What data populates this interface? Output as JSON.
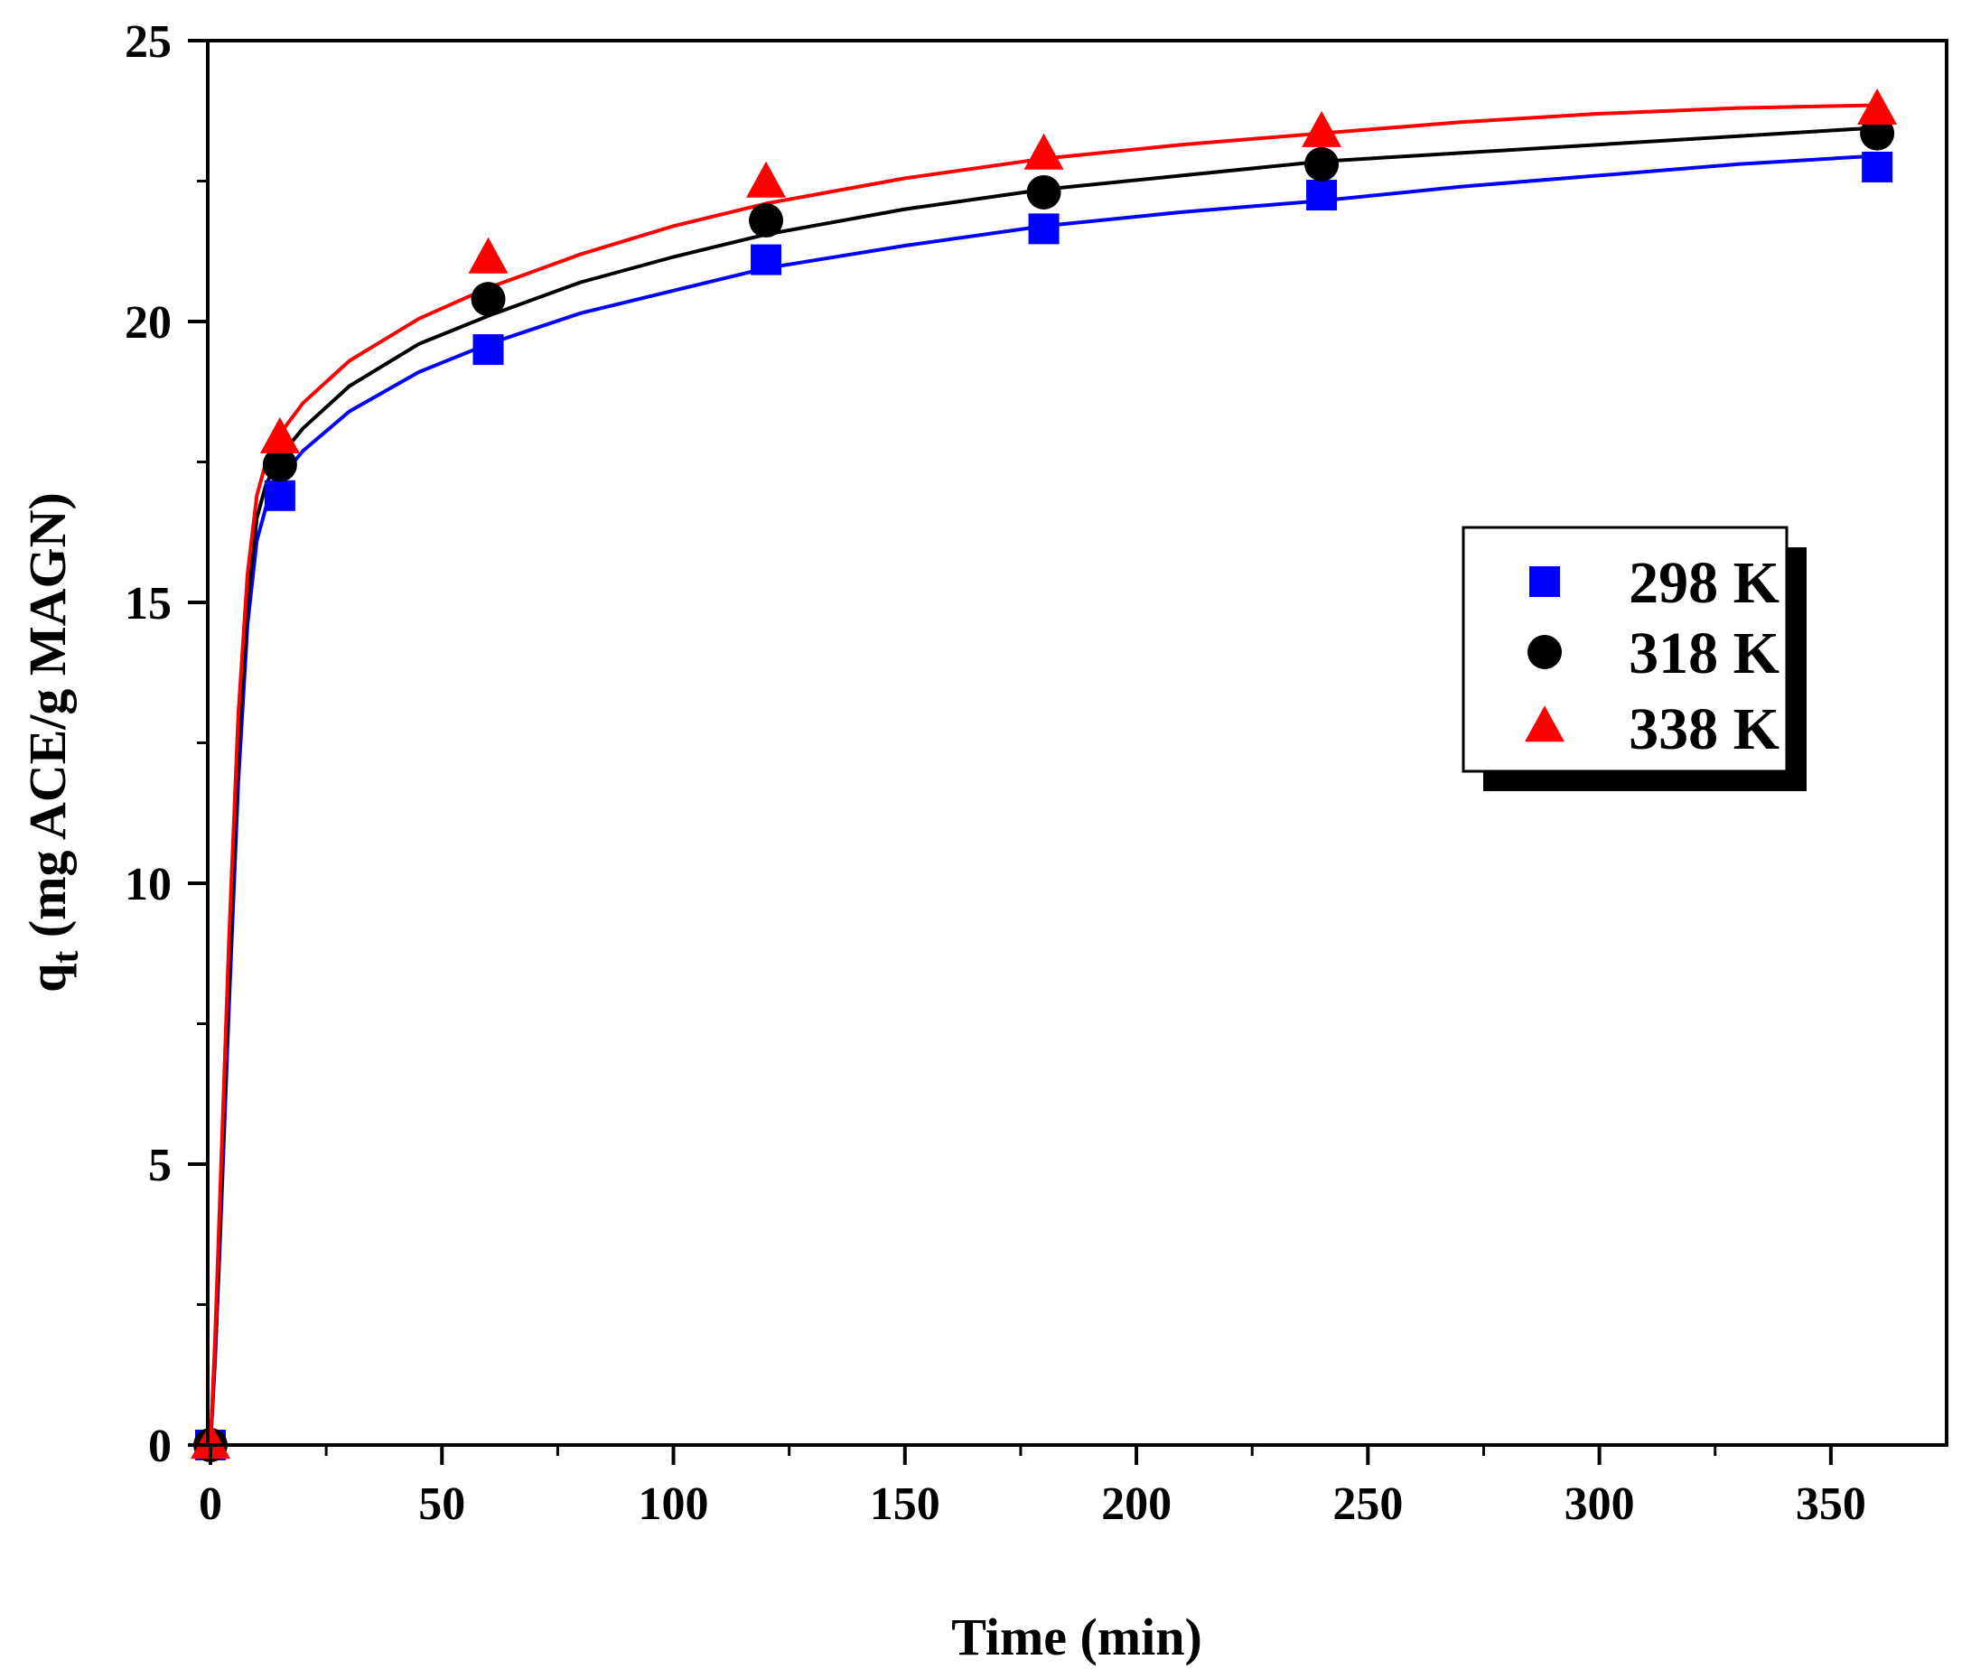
{
  "chart_data": {
    "type": "scatter",
    "title": "",
    "xlabel": "Time (min)",
    "ylabel_main": "q",
    "ylabel_sub": "t",
    "ylabel_rest": " (mg ACE/g MAGN)",
    "xlim": [
      0,
      375
    ],
    "ylim": [
      0,
      25
    ],
    "x_ticks": [
      0,
      50,
      100,
      150,
      200,
      250,
      300,
      350
    ],
    "y_ticks": [
      0,
      5,
      10,
      15,
      20,
      25
    ],
    "x_tick_labels": [
      "0",
      "50",
      "100",
      "150",
      "200",
      "250",
      "300",
      "350"
    ],
    "y_tick_labels": [
      "0",
      "5",
      "10",
      "15",
      "20",
      "25"
    ],
    "x": [
      0,
      15,
      60,
      120,
      180,
      240,
      360
    ],
    "grid": false,
    "legend_position": "right",
    "series": [
      {
        "name": "298 K",
        "marker": "square",
        "color": "#0000ff",
        "values": [
          0,
          16.9,
          19.5,
          21.1,
          21.65,
          22.25,
          22.75
        ],
        "fit": [
          [
            0,
            0
          ],
          [
            1,
            1.5
          ],
          [
            2,
            3.5
          ],
          [
            4,
            7.8
          ],
          [
            6,
            11.8
          ],
          [
            8,
            14.6
          ],
          [
            10,
            16.1
          ],
          [
            12,
            16.7
          ],
          [
            15,
            17.2
          ],
          [
            20,
            17.7
          ],
          [
            30,
            18.4
          ],
          [
            45,
            19.1
          ],
          [
            60,
            19.6
          ],
          [
            80,
            20.15
          ],
          [
            100,
            20.55
          ],
          [
            120,
            20.95
          ],
          [
            150,
            21.35
          ],
          [
            180,
            21.7
          ],
          [
            210,
            21.95
          ],
          [
            240,
            22.15
          ],
          [
            270,
            22.4
          ],
          [
            300,
            22.6
          ],
          [
            330,
            22.8
          ],
          [
            360,
            22.95
          ]
        ]
      },
      {
        "name": "318 K",
        "marker": "circle",
        "color": "#000000",
        "values": [
          0,
          17.45,
          20.4,
          21.8,
          22.3,
          22.8,
          23.35
        ],
        "fit": [
          [
            0,
            0
          ],
          [
            1,
            1.7
          ],
          [
            2,
            3.9
          ],
          [
            4,
            8.4
          ],
          [
            6,
            12.4
          ],
          [
            8,
            15.0
          ],
          [
            10,
            16.5
          ],
          [
            12,
            17.1
          ],
          [
            15,
            17.6
          ],
          [
            20,
            18.1
          ],
          [
            30,
            18.85
          ],
          [
            45,
            19.6
          ],
          [
            60,
            20.1
          ],
          [
            80,
            20.7
          ],
          [
            100,
            21.15
          ],
          [
            120,
            21.55
          ],
          [
            150,
            22.0
          ],
          [
            180,
            22.35
          ],
          [
            210,
            22.6
          ],
          [
            240,
            22.85
          ],
          [
            270,
            23.0
          ],
          [
            300,
            23.15
          ],
          [
            330,
            23.3
          ],
          [
            360,
            23.45
          ]
        ]
      },
      {
        "name": "338 K",
        "marker": "triangle",
        "color": "#ff0000",
        "values": [
          0,
          17.9,
          21.1,
          22.45,
          22.95,
          23.35,
          23.75
        ],
        "fit": [
          [
            0,
            0
          ],
          [
            1,
            1.9
          ],
          [
            2,
            4.3
          ],
          [
            4,
            9.0
          ],
          [
            6,
            13.0
          ],
          [
            8,
            15.5
          ],
          [
            10,
            16.9
          ],
          [
            12,
            17.5
          ],
          [
            15,
            18.0
          ],
          [
            20,
            18.55
          ],
          [
            30,
            19.3
          ],
          [
            45,
            20.05
          ],
          [
            60,
            20.6
          ],
          [
            80,
            21.2
          ],
          [
            100,
            21.7
          ],
          [
            120,
            22.1
          ],
          [
            150,
            22.55
          ],
          [
            180,
            22.9
          ],
          [
            210,
            23.15
          ],
          [
            240,
            23.35
          ],
          [
            270,
            23.55
          ],
          [
            300,
            23.7
          ],
          [
            330,
            23.8
          ],
          [
            360,
            23.85
          ]
        ]
      }
    ]
  }
}
